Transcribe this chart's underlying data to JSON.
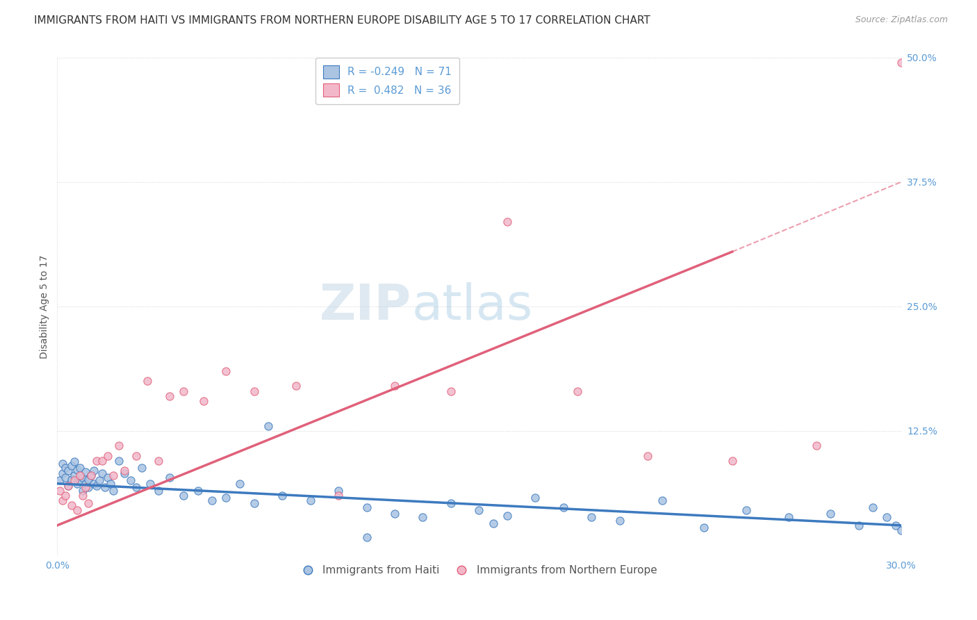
{
  "title": "IMMIGRANTS FROM HAITI VS IMMIGRANTS FROM NORTHERN EUROPE DISABILITY AGE 5 TO 17 CORRELATION CHART",
  "source": "Source: ZipAtlas.com",
  "ylabel": "Disability Age 5 to 17",
  "legend_label_haiti": "Immigrants from Haiti",
  "legend_label_northern": "Immigrants from Northern Europe",
  "r_haiti": -0.249,
  "n_haiti": 71,
  "r_northern": 0.482,
  "n_northern": 36,
  "xlim": [
    0.0,
    0.3
  ],
  "ylim": [
    0.0,
    0.5
  ],
  "y_ticks_right": [
    0.0,
    0.125,
    0.25,
    0.375,
    0.5
  ],
  "y_tick_labels_right": [
    "",
    "12.5%",
    "25.0%",
    "37.5%",
    "50.0%"
  ],
  "color_haiti": "#aac4e2",
  "color_northern": "#f2b8ca",
  "color_trendline_haiti": "#3d7abf",
  "color_trendline_northern": "#e0607a",
  "color_title": "#333333",
  "color_axis_labels": "#5b9bd5",
  "background_color": "#ffffff",
  "grid_color": "#cccccc",
  "haiti_x": [
    0.001,
    0.002,
    0.002,
    0.003,
    0.003,
    0.004,
    0.004,
    0.005,
    0.005,
    0.006,
    0.006,
    0.007,
    0.007,
    0.008,
    0.008,
    0.009,
    0.009,
    0.01,
    0.01,
    0.011,
    0.011,
    0.012,
    0.013,
    0.013,
    0.014,
    0.015,
    0.016,
    0.017,
    0.018,
    0.019,
    0.02,
    0.022,
    0.024,
    0.026,
    0.028,
    0.03,
    0.033,
    0.036,
    0.04,
    0.045,
    0.05,
    0.055,
    0.06,
    0.065,
    0.07,
    0.08,
    0.09,
    0.1,
    0.11,
    0.12,
    0.13,
    0.14,
    0.15,
    0.16,
    0.17,
    0.18,
    0.19,
    0.2,
    0.215,
    0.23,
    0.245,
    0.26,
    0.275,
    0.285,
    0.29,
    0.295,
    0.298,
    0.3,
    0.155,
    0.11,
    0.075
  ],
  "haiti_y": [
    0.075,
    0.082,
    0.092,
    0.078,
    0.088,
    0.07,
    0.085,
    0.076,
    0.09,
    0.08,
    0.094,
    0.072,
    0.086,
    0.075,
    0.088,
    0.065,
    0.078,
    0.072,
    0.084,
    0.068,
    0.076,
    0.08,
    0.072,
    0.085,
    0.07,
    0.075,
    0.082,
    0.068,
    0.078,
    0.072,
    0.065,
    0.095,
    0.082,
    0.075,
    0.068,
    0.088,
    0.072,
    0.065,
    0.078,
    0.06,
    0.065,
    0.055,
    0.058,
    0.072,
    0.052,
    0.06,
    0.055,
    0.065,
    0.048,
    0.042,
    0.038,
    0.052,
    0.045,
    0.04,
    0.058,
    0.048,
    0.038,
    0.035,
    0.055,
    0.028,
    0.045,
    0.038,
    0.042,
    0.03,
    0.048,
    0.038,
    0.03,
    0.025,
    0.032,
    0.018,
    0.13
  ],
  "northern_x": [
    0.001,
    0.002,
    0.003,
    0.004,
    0.005,
    0.006,
    0.007,
    0.008,
    0.009,
    0.01,
    0.011,
    0.012,
    0.014,
    0.016,
    0.018,
    0.02,
    0.022,
    0.024,
    0.028,
    0.032,
    0.036,
    0.04,
    0.045,
    0.052,
    0.06,
    0.07,
    0.085,
    0.1,
    0.12,
    0.14,
    0.16,
    0.185,
    0.21,
    0.24,
    0.27,
    0.3
  ],
  "northern_y": [
    0.065,
    0.055,
    0.06,
    0.07,
    0.05,
    0.075,
    0.045,
    0.08,
    0.06,
    0.068,
    0.052,
    0.08,
    0.095,
    0.095,
    0.1,
    0.08,
    0.11,
    0.085,
    0.1,
    0.175,
    0.095,
    0.16,
    0.165,
    0.155,
    0.185,
    0.165,
    0.17,
    0.06,
    0.17,
    0.165,
    0.335,
    0.165,
    0.1,
    0.095,
    0.11,
    0.495
  ],
  "trendline_haiti_x0": 0.0,
  "trendline_haiti_y0": 0.072,
  "trendline_haiti_x1": 0.3,
  "trendline_haiti_y1": 0.03,
  "trendline_northern_x0": 0.0,
  "trendline_northern_y0": 0.03,
  "trendline_northern_x1": 0.3,
  "trendline_northern_y1": 0.37,
  "trendline_northern_dash_x0": 0.24,
  "trendline_northern_dash_y0": 0.305,
  "trendline_northern_dash_x1": 0.3,
  "trendline_northern_dash_y1": 0.375,
  "watermark_zip": "ZIP",
  "watermark_atlas": "atlas",
  "title_fontsize": 11,
  "axis_label_fontsize": 10,
  "tick_fontsize": 10,
  "legend_fontsize": 11
}
